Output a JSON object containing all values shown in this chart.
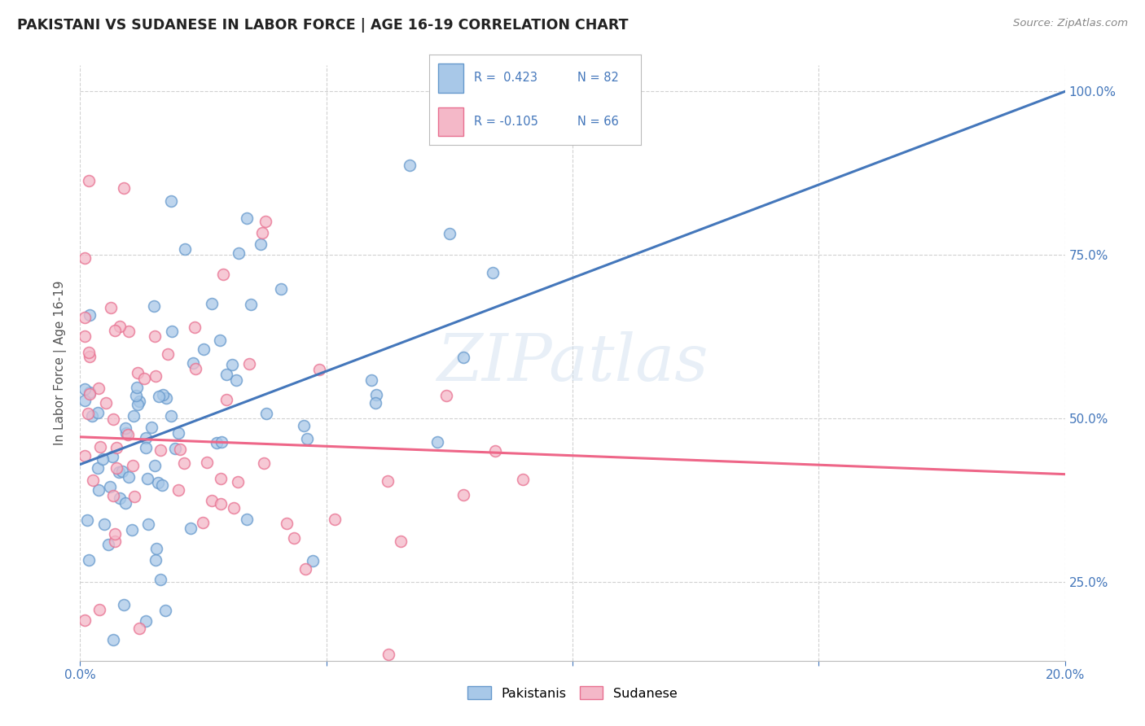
{
  "title": "PAKISTANI VS SUDANESE IN LABOR FORCE | AGE 16-19 CORRELATION CHART",
  "source": "Source: ZipAtlas.com",
  "ylabel": "In Labor Force | Age 16-19",
  "xlim": [
    0.0,
    0.2
  ],
  "ylim": [
    0.13,
    1.04
  ],
  "pakistani_color": "#A8C8E8",
  "sudanese_color": "#F4B8C8",
  "pakistani_edge_color": "#6699CC",
  "sudanese_edge_color": "#E87090",
  "pakistani_line_color": "#4477BB",
  "sudanese_line_color": "#EE6688",
  "pakistani_R": 0.423,
  "pakistani_N": 82,
  "sudanese_R": -0.105,
  "sudanese_N": 66,
  "legend_label_pakistani": "Pakistanis",
  "legend_label_sudanese": "Sudanese",
  "watermark": "ZIPatlas",
  "background_color": "#FFFFFF",
  "grid_color": "#CCCCCC",
  "pak_line_x0": 0.0,
  "pak_line_y0": 0.43,
  "pak_line_x1": 0.2,
  "pak_line_y1": 1.0,
  "sud_line_x0": 0.0,
  "sud_line_y0": 0.472,
  "sud_line_x1": 0.2,
  "sud_line_y1": 0.415,
  "text_blue": "#4477BB",
  "text_dark": "#333333",
  "right_tick_color": "#4477BB",
  "bottom_tick_color": "#4477BB"
}
